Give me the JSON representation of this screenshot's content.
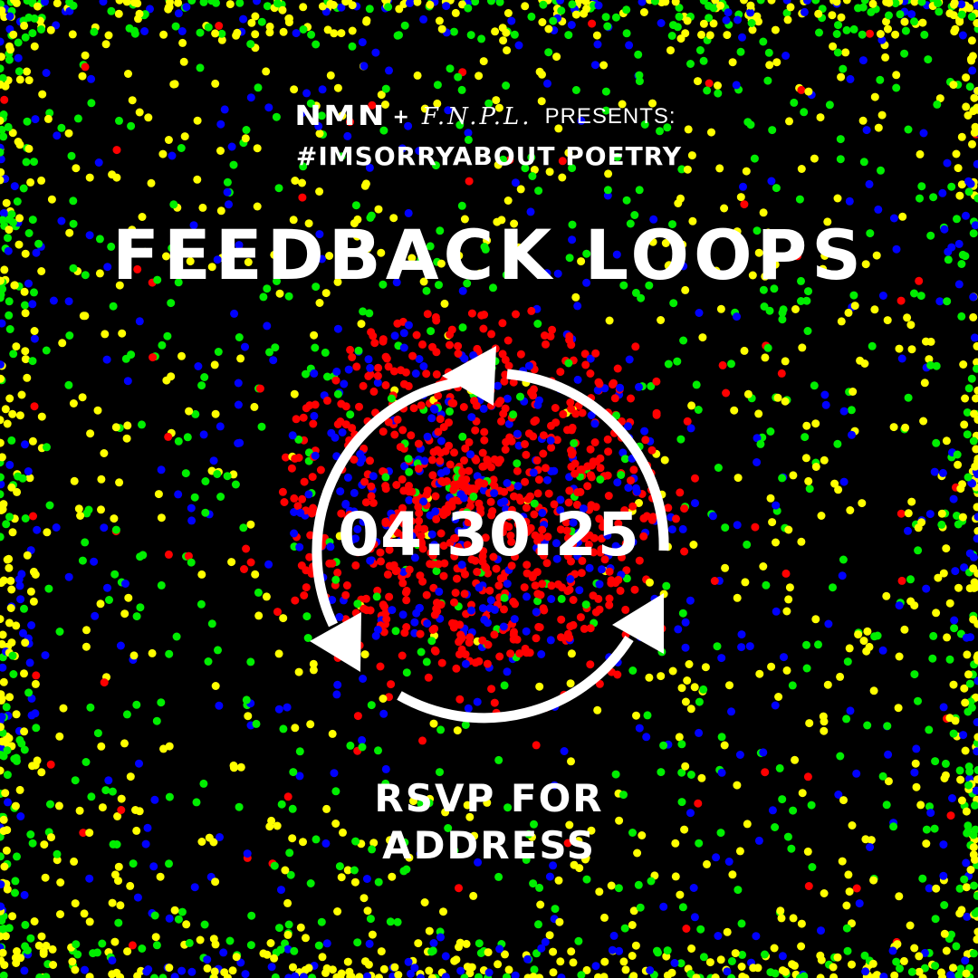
{
  "header": {
    "logo_left": "NMN",
    "plus": "+",
    "logo_right": "F.N.P.L.",
    "presents": "PRESENTS:",
    "subtitle": "#IMSORRYABOUT POETRY"
  },
  "main": {
    "title": "FEEDBACK LOOPS",
    "date": "04.30.25",
    "icon": "cycle-arrows-icon",
    "rsvp_line1": "RSVP FOR",
    "rsvp_line2": "ADDRESS"
  },
  "colors": {
    "background": "#000000",
    "text": "#ffffff",
    "dot_red": "#ff0000",
    "dot_blue": "#0000ff",
    "dot_green": "#00ee00",
    "dot_yellow": "#ffff00"
  }
}
